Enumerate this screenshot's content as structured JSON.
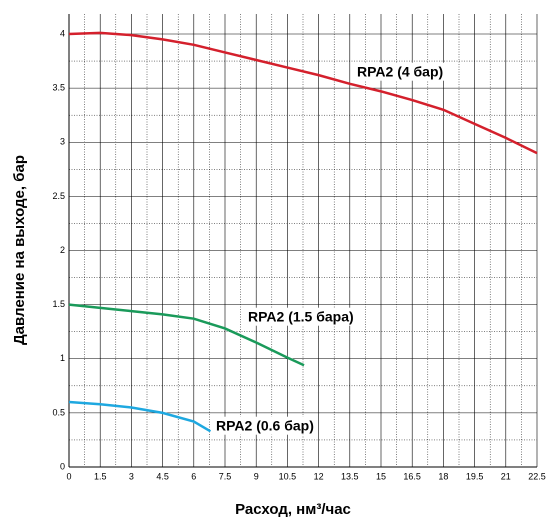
{
  "chart_data": {
    "type": "line",
    "x_label": "Расход, нм³/час",
    "y_label": "Давление на выходе, бар",
    "xlim": [
      0,
      22.5
    ],
    "xticks": [
      0,
      1.5,
      3,
      4.5,
      6,
      7.5,
      9,
      10.5,
      12,
      13.5,
      15,
      16.5,
      18,
      19.5,
      21,
      22.5
    ],
    "ylim": [
      0,
      4
    ],
    "yticks": [
      0,
      0.5,
      1,
      1.5,
      2,
      2.5,
      3,
      3.5,
      4
    ],
    "grid": true,
    "series": [
      {
        "name": "RPA2 (4 бар)",
        "color": "#d4202c",
        "x": [
          0,
          1.5,
          3,
          4.5,
          6,
          7.5,
          9,
          10.5,
          12,
          13.5,
          15,
          16.5,
          18,
          19.5,
          21,
          22.5
        ],
        "values": [
          4.0,
          4.01,
          3.99,
          3.95,
          3.9,
          3.83,
          3.76,
          3.69,
          3.62,
          3.54,
          3.47,
          3.39,
          3.3,
          3.17,
          3.04,
          2.9
        ]
      },
      {
        "name": "RPA2 (1.5 бара)",
        "color": "#1a9a5a",
        "x": [
          0,
          1.5,
          3,
          4.5,
          6,
          7.5,
          9,
          10.5,
          11.3
        ],
        "values": [
          1.5,
          1.47,
          1.44,
          1.41,
          1.37,
          1.28,
          1.15,
          1.01,
          0.94
        ]
      },
      {
        "name": "RPA2 (0.6 бар)",
        "color": "#1ea8e0",
        "x": [
          0,
          1.5,
          3,
          4.5,
          6,
          6.8
        ],
        "values": [
          0.6,
          0.58,
          0.55,
          0.5,
          0.42,
          0.33
        ]
      }
    ]
  }
}
